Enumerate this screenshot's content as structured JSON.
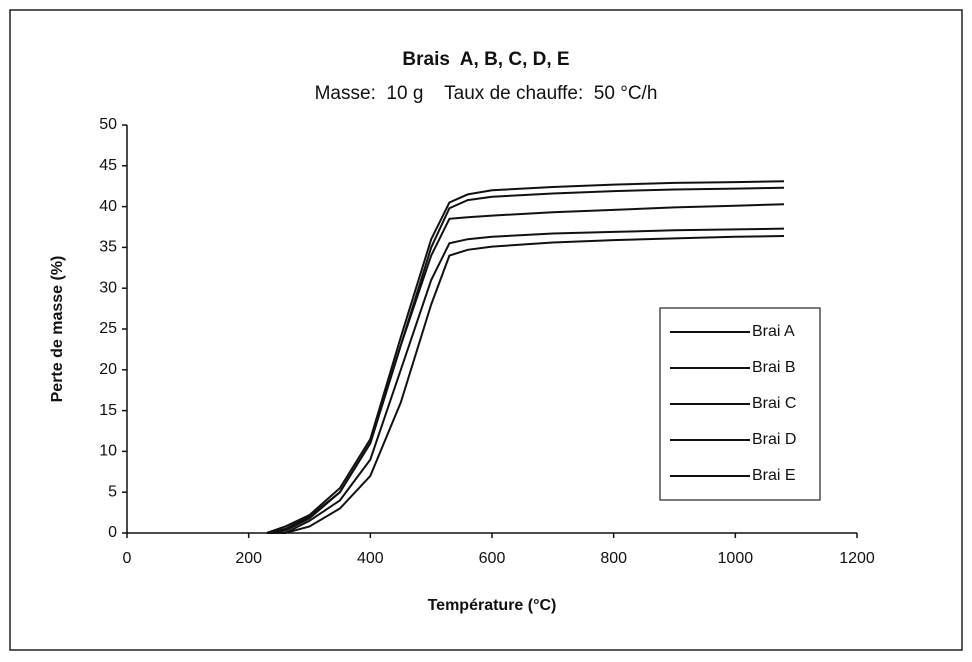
{
  "chart_data": {
    "type": "line",
    "title": "Brais  A, B, C, D, E",
    "subtitle": "Masse:  10 g    Taux de chauffe:  50 °C/h",
    "x_label": "Température (°C)",
    "y_label": "Perte de masse (%)",
    "x": [
      230,
      260,
      300,
      350,
      400,
      450,
      500,
      530,
      560,
      600,
      700,
      800,
      900,
      1000,
      1080
    ],
    "series": [
      {
        "name": "Brai A",
        "color": "#111111",
        "values": [
          0,
          0.8,
          2.2,
          5.5,
          11.5,
          24,
          36,
          40.5,
          41.5,
          42,
          42.4,
          42.7,
          42.9,
          43,
          43.1
        ]
      },
      {
        "name": "Brai B",
        "color": "#111111",
        "values": [
          0,
          0.5,
          2,
          5,
          11,
          23,
          35,
          39.8,
          40.8,
          41.2,
          41.6,
          41.9,
          42.1,
          42.2,
          42.3
        ]
      },
      {
        "name": "Brai C",
        "color": "#111111",
        "values": [
          0,
          0.3,
          1.8,
          5,
          11,
          23,
          34,
          38.5,
          38.7,
          38.9,
          39.3,
          39.6,
          39.9,
          40.1,
          40.3
        ]
      },
      {
        "name": "Brai D",
        "color": "#111111",
        "values": [
          0,
          0,
          1.5,
          4,
          9,
          20,
          31,
          35.5,
          36,
          36.3,
          36.7,
          36.9,
          37.1,
          37.2,
          37.3
        ]
      },
      {
        "name": "Brai E",
        "color": "#111111",
        "values": [
          0,
          0,
          0.8,
          3,
          7,
          16,
          28,
          34,
          34.7,
          35.1,
          35.6,
          35.9,
          36.1,
          36.3,
          36.4
        ]
      }
    ],
    "xlim": [
      0,
      1200
    ],
    "xticks": [
      0,
      200,
      400,
      600,
      800,
      1000,
      1200
    ],
    "ylim": [
      0,
      50
    ],
    "yticks": [
      0,
      5,
      10,
      15,
      20,
      25,
      30,
      35,
      40,
      45,
      50
    ],
    "legend": "right"
  }
}
